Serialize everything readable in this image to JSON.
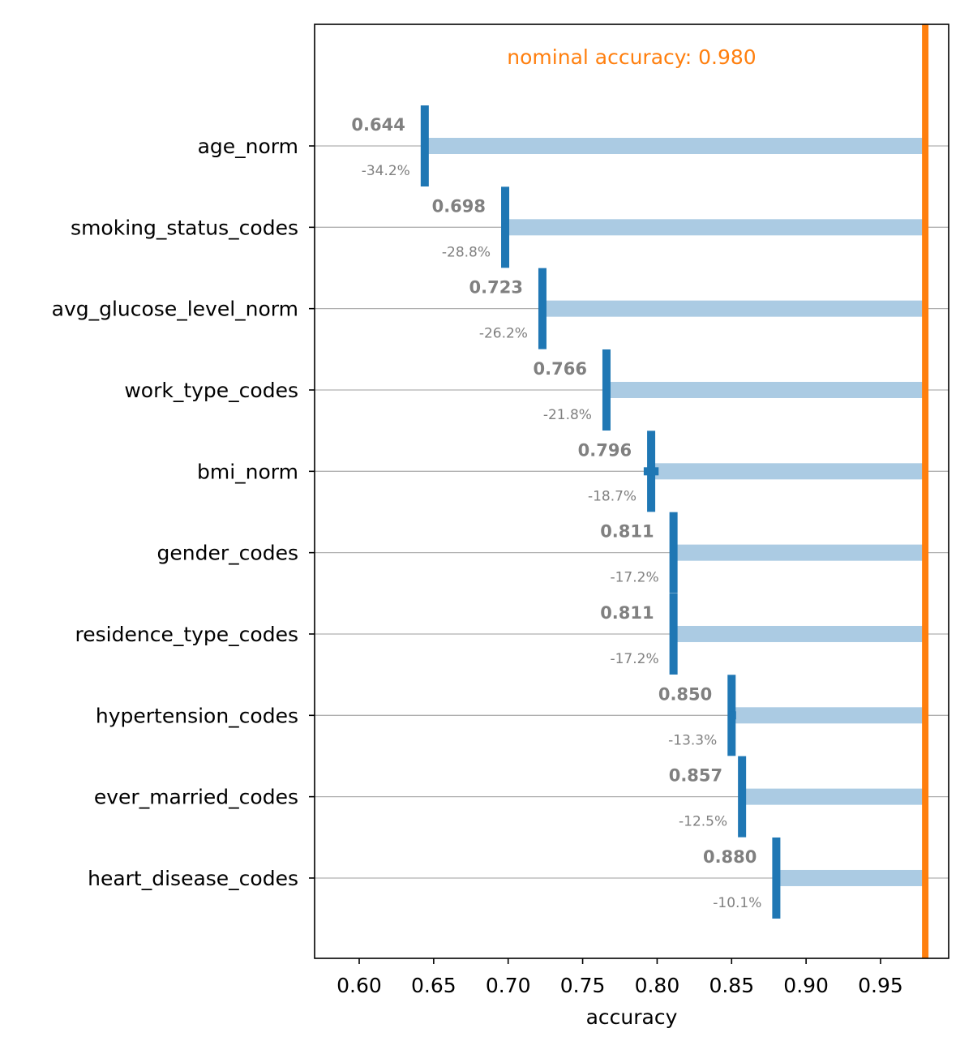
{
  "chart_data": {
    "type": "bar",
    "orientation": "horizontal",
    "xlabel": "accuracy",
    "ylabel": "",
    "xlim": [
      0.57,
      0.9965
    ],
    "xticks": [
      "0.60",
      "0.65",
      "0.70",
      "0.75",
      "0.80",
      "0.85",
      "0.90",
      "0.95"
    ],
    "xtick_values": [
      0.6,
      0.65,
      0.7,
      0.75,
      0.8,
      0.85,
      0.9,
      0.95
    ],
    "grid": "horizontal lines at each category",
    "nominal": {
      "value": 0.98,
      "label": "nominal accuracy: 0.980",
      "color": "#ff7f0e"
    },
    "colors": {
      "bar": "#abcbe3",
      "marker": "#1f77b4",
      "grid": "#b0b0b0",
      "annotation": "#808080"
    },
    "categories": [
      "age_norm",
      "smoking_status_codes",
      "avg_glucose_level_norm",
      "work_type_codes",
      "bmi_norm",
      "gender_codes",
      "residence_type_codes",
      "hypertension_codes",
      "ever_married_codes",
      "heart_disease_codes"
    ],
    "values": [
      0.644,
      0.698,
      0.723,
      0.766,
      0.796,
      0.811,
      0.811,
      0.85,
      0.857,
      0.88
    ],
    "value_labels": [
      "0.644",
      "0.698",
      "0.723",
      "0.766",
      "0.796",
      "0.811",
      "0.811",
      "0.850",
      "0.857",
      "0.880"
    ],
    "deltas": [
      "-34.2%",
      "-28.8%",
      "-26.2%",
      "-21.8%",
      "-18.7%",
      "-17.2%",
      "-17.2%",
      "-13.3%",
      "-12.5%",
      "-10.1%"
    ],
    "error_bars": [
      {
        "low": 0.644,
        "high": 0.644
      },
      {
        "low": 0.696,
        "high": 0.7
      },
      {
        "low": 0.723,
        "high": 0.723
      },
      {
        "low": 0.766,
        "high": 0.766
      },
      {
        "low": 0.791,
        "high": 0.801
      },
      {
        "low": 0.811,
        "high": 0.811
      },
      {
        "low": 0.811,
        "high": 0.811
      },
      {
        "low": 0.848,
        "high": 0.853
      },
      {
        "low": 0.857,
        "high": 0.857
      },
      {
        "low": 0.88,
        "high": 0.88
      }
    ]
  }
}
